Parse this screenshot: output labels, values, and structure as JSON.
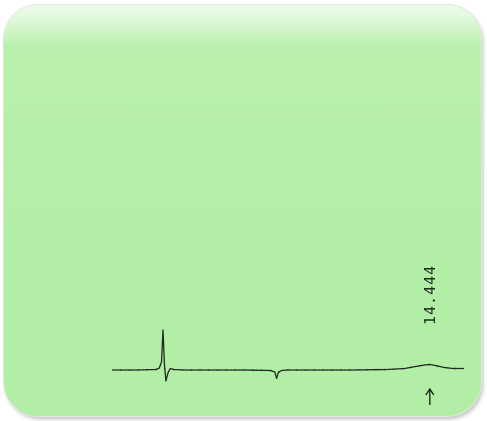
{
  "chart_data": {
    "type": "line",
    "title": "",
    "xlabel": "",
    "ylabel": "",
    "grid": false,
    "legend": "none",
    "colors": {
      "background": "#b3eea6",
      "trace": "#1e2a1e"
    },
    "xlim": [
      0,
      16
    ],
    "ylim": [
      -0.3,
      1
    ],
    "series": [
      {
        "x": [
          0,
          1.2,
          2.0,
          2.15,
          2.25,
          2.32,
          2.38,
          2.45,
          2.55,
          2.65,
          2.8,
          3.3,
          4.5,
          6.0,
          7.2,
          7.4,
          7.48,
          7.56,
          7.7,
          8.0,
          9.5,
          11.0,
          12.5,
          13.3,
          13.8,
          14.2,
          14.444,
          14.7,
          15.1,
          15.5,
          16
        ],
        "y": [
          0,
          0,
          0.01,
          0.04,
          0.16,
          0.8,
          0.12,
          -0.22,
          -0.05,
          0.03,
          0.01,
          0.0,
          0.0,
          0.0,
          -0.01,
          -0.04,
          -0.17,
          -0.05,
          -0.01,
          0.0,
          0.0,
          0.0,
          0.01,
          0.03,
          0.07,
          0.1,
          0.11,
          0.09,
          0.05,
          0.03,
          0.03
        ]
      }
    ],
    "peaks": [
      {
        "x": 14.444,
        "label": "14.444",
        "marker": "arrow-up-icon"
      }
    ]
  }
}
